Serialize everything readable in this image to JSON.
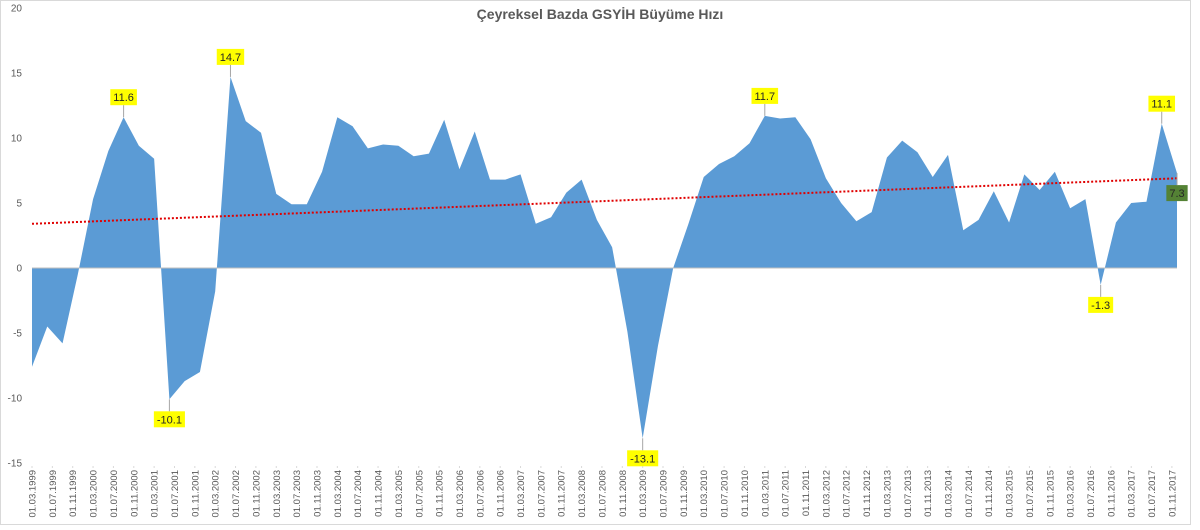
{
  "chart_data": {
    "type": "area",
    "title": "Çeyreksel Bazda GSYİH Büyüme Hızı",
    "x": [
      "1999-03-01",
      "1999-06-01",
      "1999-09-01",
      "1999-12-01",
      "2000-03-01",
      "2000-06-01",
      "2000-09-01",
      "2000-12-01",
      "2001-03-01",
      "2001-06-01",
      "2001-09-01",
      "2001-12-01",
      "2002-03-01",
      "2002-06-01",
      "2002-09-01",
      "2002-12-01",
      "2003-03-01",
      "2003-06-01",
      "2003-09-01",
      "2003-12-01",
      "2004-03-01",
      "2004-06-01",
      "2004-09-01",
      "2004-12-01",
      "2005-03-01",
      "2005-06-01",
      "2005-09-01",
      "2005-12-01",
      "2006-03-01",
      "2006-06-01",
      "2006-09-01",
      "2006-12-01",
      "2007-03-01",
      "2007-06-01",
      "2007-09-01",
      "2007-12-01",
      "2008-03-01",
      "2008-06-01",
      "2008-09-01",
      "2008-12-01",
      "2009-03-01",
      "2009-06-01",
      "2009-09-01",
      "2009-12-01",
      "2010-03-01",
      "2010-06-01",
      "2010-09-01",
      "2010-12-01",
      "2011-03-01",
      "2011-06-01",
      "2011-09-01",
      "2011-12-01",
      "2012-03-01",
      "2012-06-01",
      "2012-09-01",
      "2012-12-01",
      "2013-03-01",
      "2013-06-01",
      "2013-09-01",
      "2013-12-01",
      "2014-03-01",
      "2014-06-01",
      "2014-09-01",
      "2014-12-01",
      "2015-03-01",
      "2015-06-01",
      "2015-09-01",
      "2015-12-01",
      "2016-03-01",
      "2016-06-01",
      "2016-09-01",
      "2016-12-01",
      "2017-03-01",
      "2017-06-01",
      "2017-09-01",
      "2017-12-01"
    ],
    "series": [
      {
        "color": "#5b9bd5",
        "values": [
          -7.6,
          -4.5,
          -5.8,
          -0.5,
          5.3,
          9.0,
          11.6,
          9.4,
          8.4,
          -10.1,
          -8.7,
          -8.0,
          -1.8,
          14.7,
          11.3,
          10.4,
          5.7,
          4.9,
          4.9,
          7.4,
          11.6,
          10.9,
          9.2,
          9.5,
          9.4,
          8.6,
          8.8,
          11.4,
          7.6,
          10.5,
          6.8,
          6.8,
          7.2,
          3.4,
          3.9,
          5.8,
          6.8,
          3.7,
          1.6,
          -4.9,
          -13.1,
          -6.0,
          0.0,
          3.4,
          7.0,
          8.0,
          8.6,
          9.6,
          11.7,
          11.5,
          11.6,
          9.9,
          6.9,
          5.0,
          3.6,
          4.3,
          8.5,
          9.8,
          8.9,
          7.0,
          8.7,
          2.9,
          3.7,
          5.9,
          3.5,
          7.2,
          6.0,
          7.4,
          4.6,
          5.3,
          -1.3,
          3.5,
          5.0,
          5.1,
          11.1,
          7.3
        ]
      }
    ],
    "labels": [
      {
        "index": 6,
        "color": "#ffff00"
      },
      {
        "index": 9,
        "color": "#ffff00"
      },
      {
        "index": 13,
        "color": "#ffff00"
      },
      {
        "index": 40,
        "color": "#ffff00"
      },
      {
        "index": 48,
        "color": "#ffff00"
      },
      {
        "index": 70,
        "color": "#ffff00"
      },
      {
        "index": 74,
        "color": "#ffff00"
      },
      {
        "index": 75,
        "color": "#548235"
      }
    ],
    "trendline": {
      "color": "#e00000",
      "start": 3.4,
      "end": 6.9
    },
    "ylim": [
      -15,
      20
    ],
    "yticks": [
      -15,
      -10,
      -5,
      0,
      5,
      10,
      15,
      20
    ],
    "xticks": [
      {
        "value": "1999-03-01",
        "label": "01.03.1999"
      },
      {
        "value": "1999-07-01",
        "label": "01.07.1999"
      },
      {
        "value": "1999-11-01",
        "label": "01.11.1999"
      },
      {
        "value": "2000-03-01",
        "label": "01.03.2000"
      },
      {
        "value": "2000-07-01",
        "label": "01.07.2000"
      },
      {
        "value": "2000-11-01",
        "label": "01.11.2000"
      },
      {
        "value": "2001-03-01",
        "label": "01.03.2001"
      },
      {
        "value": "2001-07-01",
        "label": "01.07.2001"
      },
      {
        "value": "2001-11-01",
        "label": "01.11.2001"
      },
      {
        "value": "2002-03-01",
        "label": "01.03.2002"
      },
      {
        "value": "2002-07-01",
        "label": "01.07.2002"
      },
      {
        "value": "2002-11-01",
        "label": "01.11.2002"
      },
      {
        "value": "2003-03-01",
        "label": "01.03.2003"
      },
      {
        "value": "2003-07-01",
        "label": "01.07.2003"
      },
      {
        "value": "2003-11-01",
        "label": "01.11.2003"
      },
      {
        "value": "2004-03-01",
        "label": "01.03.2004"
      },
      {
        "value": "2004-07-01",
        "label": "01.07.2004"
      },
      {
        "value": "2004-11-01",
        "label": "01.11.2004"
      },
      {
        "value": "2005-03-01",
        "label": "01.03.2005"
      },
      {
        "value": "2005-07-01",
        "label": "01.07.2005"
      },
      {
        "value": "2005-11-01",
        "label": "01.11.2005"
      },
      {
        "value": "2006-03-01",
        "label": "01.03.2006"
      },
      {
        "value": "2006-07-01",
        "label": "01.07.2006"
      },
      {
        "value": "2006-11-01",
        "label": "01.11.2006"
      },
      {
        "value": "2007-03-01",
        "label": "01.03.2007"
      },
      {
        "value": "2007-07-01",
        "label": "01.07.2007"
      },
      {
        "value": "2007-11-01",
        "label": "01.11.2007"
      },
      {
        "value": "2008-03-01",
        "label": "01.03.2008"
      },
      {
        "value": "2008-07-01",
        "label": "01.07.2008"
      },
      {
        "value": "2008-11-01",
        "label": "01.11.2008"
      },
      {
        "value": "2009-03-01",
        "label": "01.03.2009"
      },
      {
        "value": "2009-07-01",
        "label": "01.07.2009"
      },
      {
        "value": "2009-11-01",
        "label": "01.11.2009"
      },
      {
        "value": "2010-03-01",
        "label": "01.03.2010"
      },
      {
        "value": "2010-07-01",
        "label": "01.07.2010"
      },
      {
        "value": "2010-11-01",
        "label": "01.11.2010"
      },
      {
        "value": "2011-03-01",
        "label": "01.03.2011"
      },
      {
        "value": "2011-07-01",
        "label": "01.07.2011"
      },
      {
        "value": "2011-11-01",
        "label": "01.11.2011"
      },
      {
        "value": "2012-03-01",
        "label": "01.03.2012"
      },
      {
        "value": "2012-07-01",
        "label": "01.07.2012"
      },
      {
        "value": "2012-11-01",
        "label": "01.11.2012"
      },
      {
        "value": "2013-03-01",
        "label": "01.03.2013"
      },
      {
        "value": "2013-07-01",
        "label": "01.07.2013"
      },
      {
        "value": "2013-11-01",
        "label": "01.11.2013"
      },
      {
        "value": "2014-03-01",
        "label": "01.03.2014"
      },
      {
        "value": "2014-07-01",
        "label": "01.07.2014"
      },
      {
        "value": "2014-11-01",
        "label": "01.11.2014"
      },
      {
        "value": "2015-03-01",
        "label": "01.03.2015"
      },
      {
        "value": "2015-07-01",
        "label": "01.07.2015"
      },
      {
        "value": "2015-11-01",
        "label": "01.11.2015"
      },
      {
        "value": "2016-03-01",
        "label": "01.03.2016"
      },
      {
        "value": "2016-07-01",
        "label": "01.07.2016"
      },
      {
        "value": "2016-11-01",
        "label": "01.11.2016"
      },
      {
        "value": "2017-03-01",
        "label": "01.03.2017"
      },
      {
        "value": "2017-07-01",
        "label": "01.07.2017"
      },
      {
        "value": "2017-11-01",
        "label": "01.11.2017"
      }
    ]
  }
}
